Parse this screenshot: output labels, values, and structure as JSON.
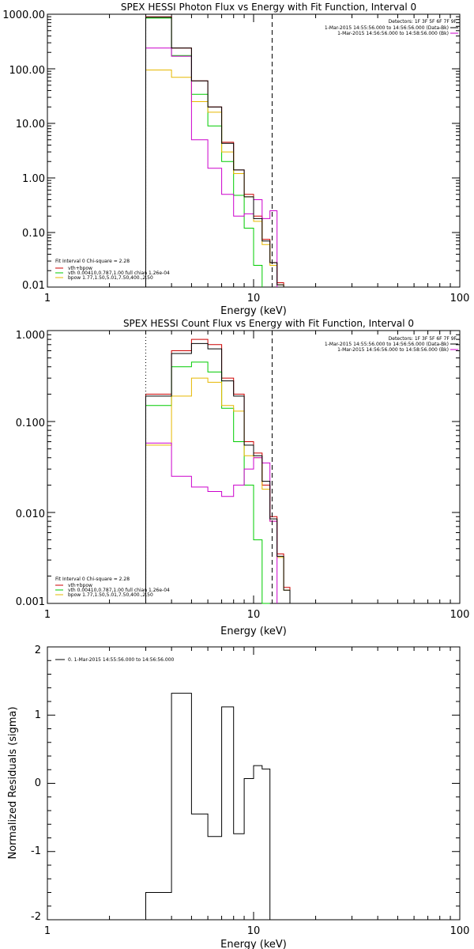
{
  "colors": {
    "data": "#000000",
    "total": "#cc0000",
    "vth": "#00cc00",
    "bpow": "#e6b800",
    "bk": "#cc00cc"
  },
  "panels": {
    "photon": {
      "title": "SPEX HESSI Photon Flux vs Energy with Fit Function, Interval 0",
      "xlabel": "Energy (keV)",
      "detectors": "Detectors: 1F 3F 5F 6F 7F 9F",
      "time_data": "1-Mar-2015 14:55:56.000 to 14:56:56.000 (Data-Bk)",
      "time_bk": "1-Mar-2015 14:56:56.000 to 14:58:56.000 (Bk)",
      "fit_lines": [
        "Fit Interval 0   Chi-square = 2.28",
        "vth+bpow",
        "vth 0.00410,0.787,1.00   full chian 1.26e-04",
        "bpow 1.77,1.50,5.01,7.50,400.,2.50"
      ],
      "yticks": [
        "1000.00",
        "100.00",
        "10.00",
        "1.00",
        "0.10",
        "0.01"
      ],
      "xticks": [
        "1",
        "10",
        "100"
      ]
    },
    "count": {
      "title": "SPEX HESSI Count Flux vs Energy with Fit Function, Interval 0",
      "xlabel": "Energy (keV)",
      "detectors": "Detectors: 1F 3F 5F 6F 7F 9F",
      "time_data": "1-Mar-2015 14:55:56.000 to 14:56:56.000 (Data-Bk)",
      "time_bk": "1-Mar-2015 14:56:56.000 to 14:58:56.000 (Bk)",
      "fit_lines": [
        "Fit Interval 0   Chi-square = 2.28",
        "vth+bpow",
        "vth 0.00410,0.787,1.00   full chian 1.26e-04",
        "bpow 1.77,1.50,5.01,7.50,400.,2.50"
      ],
      "yticks": [
        "1.000",
        "0.100",
        "0.010",
        "0.001"
      ],
      "xticks": [
        "1",
        "10",
        "100"
      ]
    },
    "resid": {
      "xlabel": "Energy (keV)",
      "ylabel": "Normalized Residuals (sigma)",
      "legend": "0.  1-Mar-2015 14:55:56.000 to 14:56:56.000",
      "yticks": [
        "2",
        "1",
        "0",
        "-1",
        "-2"
      ],
      "xticks": [
        "1",
        "10",
        "100"
      ]
    }
  },
  "chart_data": [
    {
      "type": "line",
      "title": "SPEX HESSI Photon Flux vs Energy with Fit Function, Interval 0",
      "xlabel": "Energy (keV)",
      "xscale": "log",
      "yscale": "log",
      "xlim": [
        1,
        100
      ],
      "ylim": [
        0.01,
        1000
      ],
      "bin_edges": [
        3,
        4,
        5,
        6,
        7,
        8,
        9,
        10,
        11,
        12,
        13,
        14,
        15
      ],
      "series": [
        {
          "name": "vth+bpow",
          "color": "#cc0000",
          "values": [
            900,
            240,
            60,
            20,
            4.5,
            1.4,
            0.5,
            0.2,
            0.075,
            0.028,
            0.012,
            null
          ]
        },
        {
          "name": "vth",
          "color": "#00cc00",
          "values": [
            850,
            175,
            34,
            9,
            2.0,
            0.48,
            0.12,
            0.025,
            null,
            null,
            null,
            null
          ]
        },
        {
          "name": "bpow",
          "color": "#e6b800",
          "values": [
            95,
            70,
            25,
            16,
            3.0,
            1.2,
            0.45,
            0.16,
            0.06,
            0.025,
            0.011,
            null
          ]
        },
        {
          "name": "Bk",
          "color": "#cc00cc",
          "values": [
            240,
            170,
            5,
            1.5,
            0.5,
            0.2,
            0.22,
            0.4,
            0.18,
            0.25,
            null,
            null
          ]
        },
        {
          "color": "#000000",
          "values": [
            880,
            240,
            60,
            20,
            4.3,
            1.4,
            0.45,
            0.18,
            0.07,
            0.028,
            0.011,
            null
          ]
        }
      ],
      "vlines": [
        {
          "x": 3,
          "style": "dotted"
        },
        {
          "x": 12.3,
          "style": "dashed"
        }
      ],
      "legend": "bottom-left"
    },
    {
      "type": "line",
      "title": "SPEX HESSI Count Flux vs Energy with Fit Function, Interval 0",
      "xlabel": "Energy (keV)",
      "xscale": "log",
      "yscale": "log",
      "xlim": [
        1,
        100
      ],
      "ylim": [
        0.001,
        1
      ],
      "bin_edges": [
        3,
        4,
        5,
        6,
        7,
        8,
        9,
        10,
        11,
        12,
        13,
        14,
        15
      ],
      "series": [
        {
          "name": "vth+bpow",
          "color": "#cc0000",
          "values": [
            0.2,
            0.6,
            0.8,
            0.7,
            0.3,
            0.2,
            0.06,
            0.045,
            0.02,
            0.009,
            0.0035,
            0.0015
          ]
        },
        {
          "name": "vth",
          "color": "#00cc00",
          "values": [
            0.15,
            0.4,
            0.45,
            0.35,
            0.14,
            0.06,
            0.02,
            0.005,
            0.001,
            null,
            null,
            null
          ]
        },
        {
          "name": "bpow",
          "color": "#e6b800",
          "values": [
            0.055,
            0.19,
            0.3,
            0.27,
            0.15,
            0.13,
            0.042,
            0.04,
            0.018,
            0.008,
            0.0032,
            0.0014
          ]
        },
        {
          "name": "Bk",
          "color": "#cc00cc",
          "values": [
            0.058,
            0.025,
            0.019,
            0.017,
            0.015,
            0.02,
            0.03,
            0.04,
            0.035,
            0.008,
            null,
            null
          ]
        },
        {
          "color": "#000000",
          "values": [
            0.19,
            0.56,
            0.72,
            0.63,
            0.28,
            0.19,
            0.055,
            0.042,
            0.022,
            0.0085,
            0.0033,
            0.0014
          ]
        }
      ],
      "vlines": [
        {
          "x": 3,
          "style": "dotted"
        },
        {
          "x": 12.3,
          "style": "dashed"
        }
      ],
      "legend": "bottom-left"
    },
    {
      "type": "line",
      "xlabel": "Energy (keV)",
      "ylabel": "Normalized Residuals (sigma)",
      "xscale": "log",
      "yscale": "linear",
      "xlim": [
        1,
        100
      ],
      "ylim": [
        -2,
        2
      ],
      "bin_edges": [
        3,
        4,
        5,
        6,
        7,
        8,
        9,
        10,
        11,
        12
      ],
      "series": [
        {
          "name": "0.  1-Mar-2015 14:55:56.000 to 14:56:56.000",
          "color": "#000000",
          "values": [
            -1.6,
            1.32,
            -0.45,
            -0.78,
            1.12,
            -0.74,
            0.07,
            0.26,
            0.21
          ]
        }
      ],
      "legend": "top-left"
    }
  ]
}
